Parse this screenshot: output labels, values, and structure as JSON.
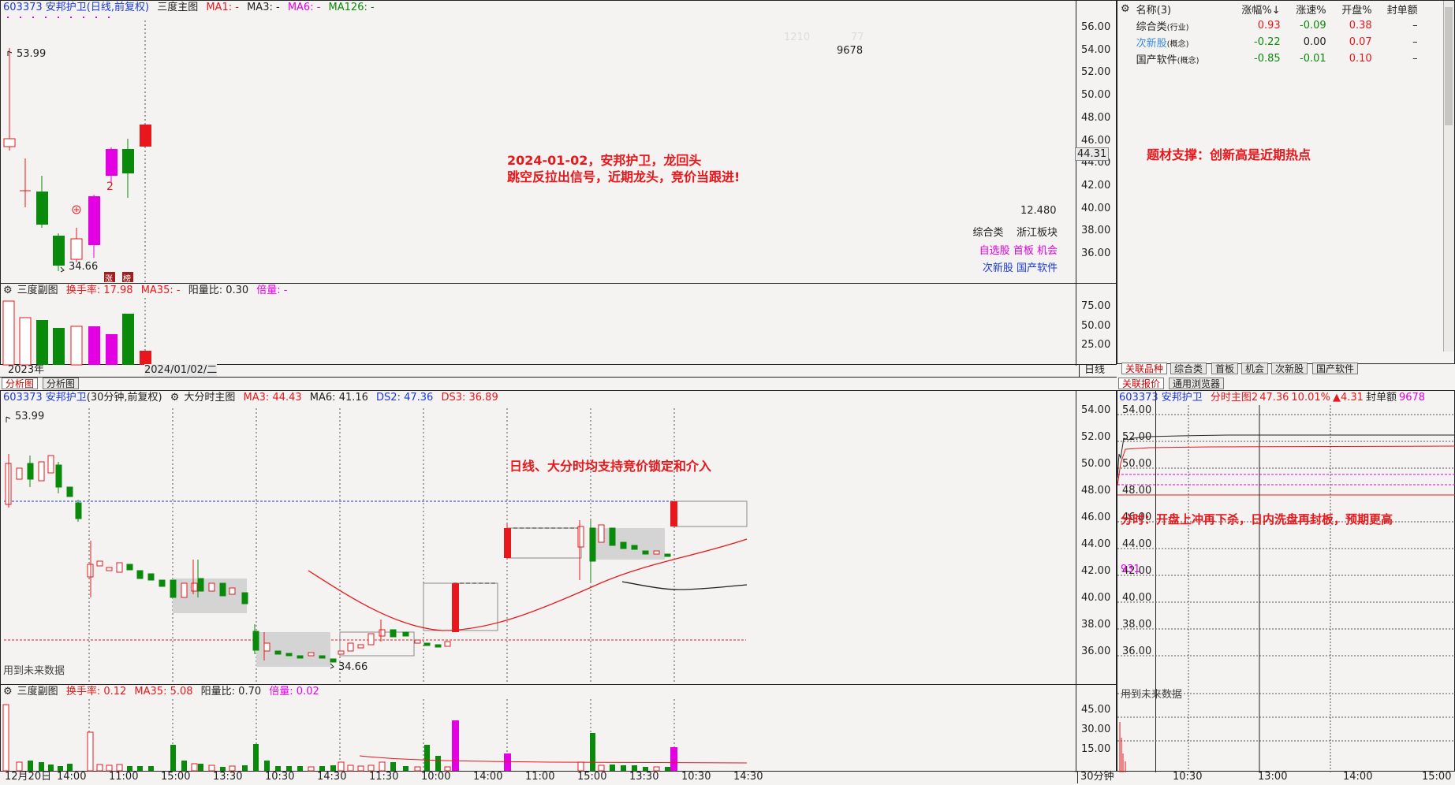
{
  "colors": {
    "up": "#e8171b",
    "down": "#0a8a0a",
    "magenta": "#e300e3",
    "blue": "#1a3ad8",
    "bg": "#f4f3f1"
  },
  "daily": {
    "header": {
      "code_name": "603373 安邦护卫",
      "period": "(日线,前复权)",
      "main_title": "三度主图",
      "ma1": "MA1: -",
      "ma3": "MA3: -",
      "ma6": "MA6: -",
      "ma126": "MA126: -"
    },
    "y_ticks": [
      "56.00",
      "54.00",
      "52.00",
      "50.00",
      "48.00",
      "46.00",
      "44.00",
      "42.00",
      "40.00",
      "38.00",
      "36.00"
    ],
    "price_tag": "44.31",
    "high_label": "53.99",
    "low_label": "34.66",
    "candle_mark": "2",
    "mark_zhang": "涨",
    "mark_bang": "榜",
    "top_nums": {
      "a": "1210",
      "b": "77",
      "c": "9678"
    },
    "note": [
      "2024-01-02，安邦护卫，龙回头",
      "跳空反拉出信号，近期龙头，竞价当跟进!"
    ],
    "value": "12.480",
    "tags": [
      [
        "综合类",
        "浙江板块"
      ],
      [
        "自选股",
        "首板",
        "机会"
      ],
      [
        "次新股",
        "国产软件"
      ]
    ],
    "sub": {
      "title": "三度副图",
      "turnover": "换手率: 17.98",
      "ma35": "MA35: -",
      "ratio": "阳量比: 0.30",
      "bei": "倍量: -",
      "y_ticks": [
        "75.00",
        "50.00",
        "25.00"
      ]
    },
    "x_labels": [
      "2023年",
      "2024/01/02/二"
    ],
    "axis_label": "日线"
  },
  "bottom_tabs": [
    "分析图",
    "分析图"
  ],
  "intraday": {
    "header": {
      "code_name": "603373 安邦护卫",
      "period": "(30分钟,前复权)",
      "main_title": "大分时主图",
      "ma3": "MA3: 44.43",
      "ma6": "MA6: 41.16",
      "ds2": "DS2: 47.36",
      "ds3": "DS3: 36.89"
    },
    "y_ticks": [
      "54.00",
      "52.00",
      "50.00",
      "48.00",
      "46.00",
      "44.00",
      "42.00",
      "40.00",
      "38.00",
      "36.00"
    ],
    "high_label": "53.99",
    "low_label": "34.66",
    "note": "日线、大分时均支持竞价锁定和介入",
    "future": "用到未来数据",
    "sub": {
      "title": "三度副图",
      "turnover": "换手率: 0.12",
      "ma35": "MA35: 5.08",
      "ratio": "阳量比: 0.70",
      "bei": "倍量: 0.02",
      "y_ticks": [
        "45.00",
        "30.00",
        "15.00"
      ]
    },
    "x_labels": [
      "12月20日",
      "14:00",
      "11:00",
      "15:00",
      "13:30",
      "10:30",
      "14:30",
      "11:30",
      "10:00",
      "14:00",
      "11:00",
      "15:00",
      "13:30",
      "10:30",
      "14:30"
    ],
    "axis_label": "30分钟"
  },
  "related": {
    "columns": [
      "名称(3)",
      "涨幅%↓",
      "涨速%",
      "开盘%",
      "封单额"
    ],
    "rows": [
      {
        "name": "综合类",
        "tag": "(行业)",
        "chg": "0.93",
        "speed": "-0.09",
        "open": "0.38",
        "seal": "–"
      },
      {
        "name": "次新股",
        "tag": "(概念)",
        "chg": "-0.22",
        "speed": "0.00",
        "open": "0.07",
        "seal": "–"
      },
      {
        "name": "国产软件",
        "tag": "(概念)",
        "chg": "-0.85",
        "speed": "-0.01",
        "open": "0.10",
        "seal": "–"
      }
    ],
    "note": "题材支撑：创新高是近期热点",
    "tabs": [
      "关联品种",
      "综合类",
      "首板",
      "机会",
      "次新股",
      "国产软件"
    ],
    "tabs2": [
      "关联报价",
      "通用浏览器"
    ]
  },
  "minute": {
    "header": {
      "code_name": "603373 安邦护卫",
      "title": "分时主图2",
      "price": "47.36",
      "pct": "10.01%",
      "delta": "▲4.31",
      "seal": "封单额",
      "seal_val": "9678"
    },
    "y_ticks": [
      "54.00",
      "52.00",
      "50.00",
      "48.00",
      "46.00",
      "44.00",
      "42.00",
      "40.00",
      "38.00",
      "36.00"
    ],
    "vol_label": "931",
    "note": "分时：开盘上冲再下杀，日内洗盘再封板，预期更高",
    "future": "用到未来数据",
    "x_labels": [
      "10:30",
      "13:00",
      "14:00",
      "15:00"
    ]
  }
}
